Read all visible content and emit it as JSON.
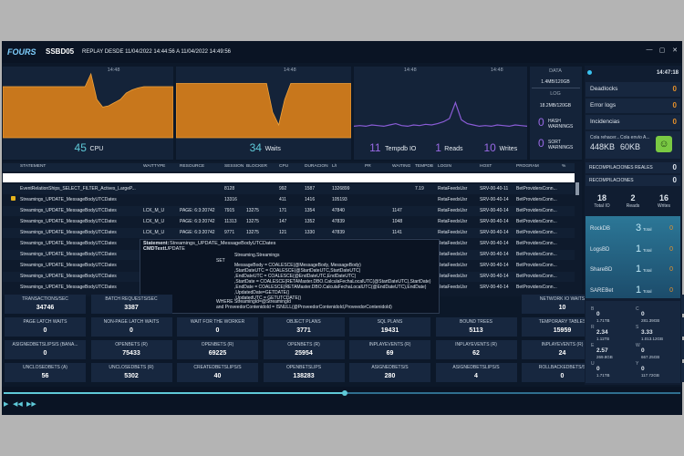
{
  "header": {
    "logo": "FOURS",
    "server": "SSBD05",
    "replay": "REPLAY DESDE 11/04/2022 14:44:56 A 11/04/2022 14:49:56"
  },
  "chart_data": [
    {
      "type": "area",
      "color": "#c8771c",
      "ylim": [
        0,
        100
      ],
      "times": [
        "14:48"
      ],
      "values": [
        80,
        80,
        80,
        80,
        80,
        80,
        80,
        80,
        80,
        80,
        80,
        80,
        80,
        80,
        80,
        100,
        60,
        48,
        50,
        55,
        60,
        70,
        75,
        78,
        80,
        80,
        80,
        80,
        80,
        80
      ],
      "stats": [
        {
          "value": 45,
          "label": "CPU"
        }
      ]
    },
    {
      "type": "area",
      "color": "#c8771c",
      "ylim": [
        0,
        100
      ],
      "times": [
        "14:48"
      ],
      "values": [
        85,
        85,
        85,
        85,
        85,
        85,
        85,
        85,
        85,
        85,
        85,
        85,
        85,
        85,
        85,
        85,
        40,
        20,
        60,
        85,
        85,
        85,
        85,
        85,
        85,
        85,
        85,
        85,
        85,
        85
      ],
      "stats": [
        {
          "value": 34,
          "label": "Waits"
        }
      ]
    },
    {
      "type": "line",
      "color": "#8a5cd6",
      "ylim": [
        0,
        100
      ],
      "times": [
        "14:48",
        "14:48"
      ],
      "values": [
        18,
        19,
        18,
        20,
        19,
        18,
        20,
        22,
        19,
        18,
        20,
        19,
        21,
        20,
        22,
        25,
        30,
        55,
        28,
        22,
        20,
        18,
        19,
        18,
        20,
        19,
        18,
        20,
        19,
        18
      ],
      "stats": [
        {
          "value": 11,
          "label": "Tempdb IO"
        },
        {
          "value": 1,
          "label": "Reads"
        },
        {
          "value": 10,
          "label": "Writes"
        }
      ]
    }
  ],
  "storage": {
    "data_title": "DATA",
    "data": "1.4MB/120GB",
    "log_title": "LOG",
    "log": "18.2MB/120GB",
    "hash": {
      "value": 0,
      "label": "HASH WARNINGS"
    },
    "sort": {
      "value": 0,
      "label": "SORT WARNINGS"
    }
  },
  "table": {
    "columns": [
      "STATEMENT",
      "WAITTYPE",
      "RESOURCE",
      "SESSION",
      "BLOCKER",
      "CPU",
      "DURACION",
      "L/I",
      "PR",
      "WAITING",
      "TEMPDB",
      "LOGIN",
      "HOST",
      "PROGRAM",
      "%"
    ],
    "rows": [
      [
        "EventRelationShips_SELECT_FILTER_Actives_LargeP...",
        null,
        null,
        8128,
        null,
        992,
        1587,
        1326899,
        null,
        null,
        7.19,
        "RetaFeedsUsr",
        "SRV-00-40-11",
        "BetProvidersConn...",
        null
      ],
      [
        "Streamings_UPDATE_MessageBodyUTCDates",
        null,
        null,
        13316,
        null,
        411,
        1416,
        105193,
        null,
        null,
        null,
        "RetaFeedsUsr",
        "SRV-00-40-14",
        "BetProvidersConn...",
        null
      ],
      [
        "Streamings_UPDATE_MessageBodyUTCDates",
        "LCK_M_U",
        "PAGE: 6:3:20742",
        7915,
        13275,
        171,
        1354,
        47840,
        null,
        1147,
        null,
        "RetaFeedsUsr",
        "SRV-00-40-14",
        "BetProvidersConn...",
        null
      ],
      [
        "Streamings_UPDATE_MessageBodyUTCDates",
        "LCK_M_U",
        "PAGE: 6:3:20742",
        11313,
        13275,
        147,
        1352,
        47839,
        null,
        1048,
        null,
        "RetaFeedsUsr",
        "SRV-00-40-14",
        "BetProvidersConn...",
        null
      ],
      [
        "Streamings_UPDATE_MessageBodyUTCDates",
        "LCK_M_U",
        "PAGE: 6:3:20742",
        9771,
        13275,
        121,
        1330,
        47839,
        null,
        1141,
        null,
        "RetaFeedsUsr",
        "SRV-00-40-14",
        "BetProvidersConn...",
        null
      ],
      [
        "Streamings_UPDATE_MessageBodyUTCDates",
        null,
        null,
        null,
        null,
        null,
        null,
        null,
        null,
        null,
        null,
        "RetaFeedsUsr",
        "SRV-00-40-14",
        "BetProvidersConn...",
        null
      ],
      [
        "Streamings_UPDATE_MessageBodyUTCDates",
        null,
        null,
        null,
        null,
        null,
        null,
        null,
        null,
        null,
        null,
        "RetaFeedsUsr",
        "SRV-00-40-14",
        "BetProvidersConn...",
        null
      ],
      [
        "Streamings_UPDATE_MessageBodyUTCDates",
        null,
        null,
        null,
        null,
        null,
        null,
        null,
        null,
        null,
        null,
        "RetaFeedsUsr",
        "SRV-00-40-14",
        "BetProvidersConn...",
        null
      ],
      [
        "Streamings_UPDATE_MessageBodyUTCDates",
        null,
        null,
        null,
        null,
        null,
        null,
        null,
        null,
        null,
        null,
        "RetaFeedsUsr",
        "SRV-00-40-14",
        "BetProvidersConn...",
        null
      ],
      [
        "Streamings_UPDATE_MessageBodyUTCDates",
        null,
        null,
        null,
        null,
        null,
        null,
        null,
        null,
        null,
        null,
        "RetaFeedsUsr",
        "SRV-00-40-14",
        "BetProvidersConn...",
        null
      ]
    ]
  },
  "tooltip": {
    "statement_label": "Statement:",
    "statement": "Streamings_UPDATE_MessageBodyUTCDates",
    "cmd_label": "CMDText:",
    "cmd": "UPDATE",
    "set": "SET",
    "lines": [
      "Streaming.Streamings",
      "MessageBody = COALESCE(@MessageBody, MessageBody)",
      ",StartDateUTC = COALESCE(@StartDateUTC,StartDateUTC)",
      ",EndDateUTC = COALESCE(@EndDateUTC,EndDateUTC)",
      ",StartDate = COALESCE(RETAMaster.DBO.CalculaFechaLocalUTC(@StartDateUTC),StartDate)",
      ",EndDate = COALESCE(RETAMaster.DBO.CalculaFechaLocalUTC(@EndDateUTC),EndDate)",
      ",UpdatedDate=GETDATE()",
      ",UpdatedUTC = GETUTCDATE()"
    ],
    "where": [
      "WHERE StreamingId=@StreamingId",
      "and ProveedorContenidoId = ISNULL(@ProveedorContenidoId,ProveedorContenidoId)"
    ]
  },
  "metrics": [
    [
      {
        "label": "TRANSACTIONS/SEC",
        "value": 34746
      },
      {
        "label": "BATCH REQUESTS/SEC",
        "value": 3387
      },
      {
        "label": "NETWORK IO WAITS",
        "value": 10
      },
      {
        "label": "PAGE IO LATCH WAITS",
        "value": 0
      }
    ],
    [
      {
        "label": "PAGE LATCH WAITS",
        "value": 0
      },
      {
        "label": "NON-PAGE LATCH WAITS",
        "value": 0
      },
      {
        "label": "WAIT FOR THE WORKER",
        "value": 0
      },
      {
        "label": "OBJECT PLANS",
        "value": 3771
      },
      {
        "label": "SQL PLANS",
        "value": 19431
      },
      {
        "label": "BOUND TREES",
        "value": 5113
      },
      {
        "label": "TEMPORARY TABLES",
        "value": 15959
      },
      {
        "label": "EXTENDED STORED PROCE...",
        "value": 31
      }
    ],
    [
      {
        "label": "ASIGNEDBETSLIPS/S (BANA...",
        "value": 0
      },
      {
        "label": "OPENBETS (R)",
        "value": 75433
      },
      {
        "label": "OPENBETS (R)",
        "value": 69225
      },
      {
        "label": "OPENBETS (R)",
        "value": 25954
      },
      {
        "label": "INPLAYEVENTS (R)",
        "value": 69
      },
      {
        "label": "INPLAYEVENTS (R)",
        "value": 62
      },
      {
        "label": "INPLAYEVENTS (R)",
        "value": 24
      },
      {
        "label": "UNCLOSEDBETS (R)",
        "value": 632
      }
    ],
    [
      {
        "label": "UNCLOSEDBETS (A)",
        "value": 56
      },
      {
        "label": "UNCLOSEDBETS (R)",
        "value": 5302
      },
      {
        "label": "CREATEDBETSLIPS/S",
        "value": 40
      },
      {
        "label": "OPENBETSLIPS",
        "value": 138283
      },
      {
        "label": "ASIGNEDBETS/S",
        "value": 280
      },
      {
        "label": "ASIGNEDBETSLIPS/S",
        "value": 4
      },
      {
        "label": "ROLLBACKEDBETS/S",
        "value": 0
      },
      {
        "label": "ROLLBACKEDBETSLIPS/S",
        "value": 0
      }
    ]
  ],
  "sidebar": {
    "time": "14:47:18",
    "alerts": [
      {
        "label": "Deadlocks",
        "value": 0
      },
      {
        "label": "Error logs",
        "value": 0
      },
      {
        "label": "Incidencias",
        "value": 0
      }
    ],
    "queues": [
      {
        "label": "Cola rehacer...",
        "value": "448KB"
      },
      {
        "label": "Cola envío A...",
        "value": "60KB"
      }
    ],
    "recompiles": [
      {
        "label": "RECOMPILACIONES REALES",
        "value": 0
      },
      {
        "label": "RECOMPILACIONES",
        "value": 0
      }
    ],
    "io": [
      {
        "value": 18,
        "label": "Total IO"
      },
      {
        "value": 2,
        "label": "Reads"
      },
      {
        "value": 16,
        "label": "Writes"
      }
    ],
    "databases": [
      {
        "name": "RockDB",
        "value": 3,
        "unit": "Total",
        "alerts": 0
      },
      {
        "name": "LogsBD",
        "value": 1,
        "unit": "Total",
        "alerts": 0
      },
      {
        "name": "ShareBD",
        "value": 1,
        "unit": "Total",
        "alerts": 0
      },
      {
        "name": "SAREBet",
        "value": 1,
        "unit": "Total",
        "alerts": 0
      }
    ],
    "drives": [
      [
        {
          "letter": "B",
          "value": 0,
          "size": "1.71TB"
        },
        {
          "letter": "C",
          "value": 0,
          "size": "281.39GB"
        }
      ],
      [
        {
          "letter": "R",
          "value": 2.34,
          "size": "1.11TB"
        },
        {
          "letter": "S",
          "value": 3.33,
          "size": "1.013.12GB"
        }
      ],
      [
        {
          "letter": "E",
          "value": 2.57,
          "size": "269.8GB"
        },
        {
          "letter": "W",
          "value": 0,
          "size": "667.25GB"
        }
      ],
      [
        {
          "letter": "U",
          "value": 0,
          "size": "1.71TB"
        },
        {
          "letter": "Y",
          "value": 0,
          "size": "117.72GB"
        }
      ]
    ]
  }
}
